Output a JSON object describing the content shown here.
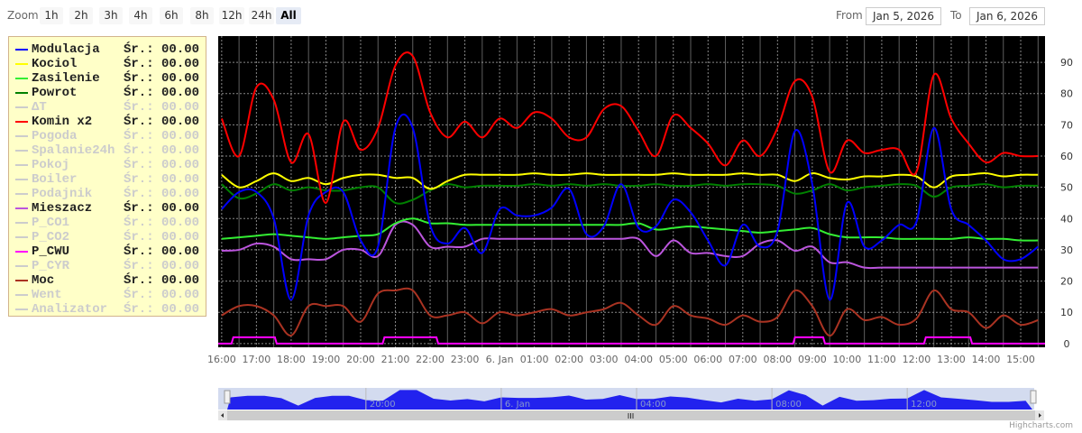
{
  "range_selector": {
    "zoom_label": "Zoom",
    "buttons": [
      "1h",
      "2h",
      "3h",
      "4h",
      "6h",
      "8h",
      "12h",
      "24h",
      "All"
    ],
    "selected": "All",
    "from_label": "From",
    "from_value": "Jan 5, 2026",
    "to_label": "To",
    "to_value": "Jan 6, 2026"
  },
  "legend": {
    "avg_label": "Śr.:",
    "items": [
      {
        "name": "Modulacja",
        "color": "#0000ff",
        "active": true,
        "avg": "00.00"
      },
      {
        "name": "Kociol",
        "color": "#ffff00",
        "active": true,
        "avg": "00.00"
      },
      {
        "name": "Zasilenie",
        "color": "#33ee33",
        "active": true,
        "avg": "00.00"
      },
      {
        "name": "Powrot",
        "color": "#008000",
        "active": true,
        "avg": "00.00"
      },
      {
        "name": "ΔT",
        "color": "#cccccc",
        "active": false,
        "avg": "00.00"
      },
      {
        "name": "Komin x2",
        "color": "#ff0000",
        "active": true,
        "avg": "00.00"
      },
      {
        "name": "Pogoda",
        "color": "#cccccc",
        "active": false,
        "avg": "00.00"
      },
      {
        "name": "Spalanie24h",
        "color": "#cccccc",
        "active": false,
        "avg": "00.00"
      },
      {
        "name": "Pokoj",
        "color": "#cccccc",
        "active": false,
        "avg": "00.00"
      },
      {
        "name": "Boiler",
        "color": "#cccccc",
        "active": false,
        "avg": "00.00"
      },
      {
        "name": "Podajnik",
        "color": "#cccccc",
        "active": false,
        "avg": "00.00"
      },
      {
        "name": "Mieszacz",
        "color": "#bb55dd",
        "active": true,
        "avg": "00.00"
      },
      {
        "name": "P_CO1",
        "color": "#cccccc",
        "active": false,
        "avg": "00.00"
      },
      {
        "name": "P_CO2",
        "color": "#cccccc",
        "active": false,
        "avg": "00.00"
      },
      {
        "name": "P_CWU",
        "color": "#ff00ff",
        "active": true,
        "avg": "00.00"
      },
      {
        "name": "P_CYR",
        "color": "#cccccc",
        "active": false,
        "avg": "00.00"
      },
      {
        "name": "Moc",
        "color": "#aa3322",
        "active": true,
        "avg": "00.00"
      },
      {
        "name": "Went",
        "color": "#cccccc",
        "active": false,
        "avg": "00.00"
      },
      {
        "name": "Analizator",
        "color": "#cccccc",
        "active": false,
        "avg": "00.00"
      }
    ]
  },
  "credits": "Highcharts.com",
  "chart_data": {
    "type": "line",
    "background": "#000000",
    "grid": true,
    "legend_placement": "left",
    "xrange": [
      "2026-01-05 15:54",
      "2026-01-06 15:42"
    ],
    "ylim": [
      -1.2,
      98.4
    ],
    "yticks": [
      0,
      10,
      20,
      30,
      40,
      50,
      60,
      70,
      80,
      90
    ],
    "xticks": [
      {
        "time": "2026-01-05 16:00",
        "label": "16:00"
      },
      {
        "time": "2026-01-05 17:00",
        "label": "17:00"
      },
      {
        "time": "2026-01-05 18:00",
        "label": "18:00"
      },
      {
        "time": "2026-01-05 19:00",
        "label": "19:00"
      },
      {
        "time": "2026-01-05 20:00",
        "label": "20:00"
      },
      {
        "time": "2026-01-05 21:00",
        "label": "21:00"
      },
      {
        "time": "2026-01-05 22:00",
        "label": "22:00"
      },
      {
        "time": "2026-01-05 23:00",
        "label": "23:00"
      },
      {
        "time": "2026-01-06 00:00",
        "label": "6. Jan"
      },
      {
        "time": "2026-01-06 01:00",
        "label": "01:00"
      },
      {
        "time": "2026-01-06 02:00",
        "label": "02:00"
      },
      {
        "time": "2026-01-06 03:00",
        "label": "03:00"
      },
      {
        "time": "2026-01-06 04:00",
        "label": "04:00"
      },
      {
        "time": "2026-01-06 05:00",
        "label": "05:00"
      },
      {
        "time": "2026-01-06 06:00",
        "label": "06:00"
      },
      {
        "time": "2026-01-06 07:00",
        "label": "07:00"
      },
      {
        "time": "2026-01-06 08:00",
        "label": "08:00"
      },
      {
        "time": "2026-01-06 09:00",
        "label": "09:00"
      },
      {
        "time": "2026-01-06 10:00",
        "label": "10:00"
      },
      {
        "time": "2026-01-06 11:00",
        "label": "11:00"
      },
      {
        "time": "2026-01-06 12:00",
        "label": "12:00"
      },
      {
        "time": "2026-01-06 13:00",
        "label": "13:00"
      },
      {
        "time": "2026-01-06 14:00",
        "label": "14:00"
      },
      {
        "time": "2026-01-06 15:00",
        "label": "15:00"
      }
    ],
    "x": [
      "2026-01-05 16:00",
      "2026-01-05 16:30",
      "2026-01-05 17:00",
      "2026-01-05 17:30",
      "2026-01-05 18:00",
      "2026-01-05 18:30",
      "2026-01-05 19:00",
      "2026-01-05 19:30",
      "2026-01-05 20:00",
      "2026-01-05 20:30",
      "2026-01-05 21:00",
      "2026-01-05 21:30",
      "2026-01-05 22:00",
      "2026-01-05 22:30",
      "2026-01-05 23:00",
      "2026-01-05 23:30",
      "2026-01-06 00:00",
      "2026-01-06 00:30",
      "2026-01-06 01:00",
      "2026-01-06 01:30",
      "2026-01-06 02:00",
      "2026-01-06 02:30",
      "2026-01-06 03:00",
      "2026-01-06 03:30",
      "2026-01-06 04:00",
      "2026-01-06 04:30",
      "2026-01-06 05:00",
      "2026-01-06 05:30",
      "2026-01-06 06:00",
      "2026-01-06 06:30",
      "2026-01-06 07:00",
      "2026-01-06 07:30",
      "2026-01-06 08:00",
      "2026-01-06 08:30",
      "2026-01-06 09:00",
      "2026-01-06 09:30",
      "2026-01-06 10:00",
      "2026-01-06 10:30",
      "2026-01-06 11:00",
      "2026-01-06 11:30",
      "2026-01-06 12:00",
      "2026-01-06 12:30",
      "2026-01-06 13:00",
      "2026-01-06 13:30",
      "2026-01-06 14:00",
      "2026-01-06 14:30",
      "2026-01-06 15:00",
      "2026-01-06 15:30"
    ],
    "series": [
      {
        "name": "Moc",
        "color": "#aa3322",
        "values": [
          9,
          12,
          12,
          9,
          2.6,
          12,
          12,
          12,
          7,
          16,
          17,
          17,
          9,
          9,
          10,
          6.5,
          10,
          9,
          10,
          11,
          9,
          10,
          11,
          13,
          9,
          6,
          12,
          9,
          8,
          6,
          9,
          7,
          8.5,
          17,
          12,
          2.5,
          11,
          7.5,
          8.5,
          6,
          8,
          17,
          11,
          10,
          5,
          9,
          6,
          7.5
        ]
      },
      {
        "name": "Mieszacz",
        "color": "#bb55dd",
        "values": [
          29.7,
          30,
          32,
          31,
          27,
          27,
          27,
          30,
          30,
          28,
          38,
          38,
          31,
          31,
          31,
          33.5,
          33.5,
          33.5,
          33.5,
          33.5,
          33.5,
          33.5,
          33.5,
          33.5,
          33.5,
          28,
          33,
          29,
          29,
          28,
          28,
          32,
          33,
          29.7,
          31,
          26,
          26,
          24.3,
          24.3,
          24.3,
          24.3,
          24.3,
          24.3,
          24.3,
          24.3,
          24.3,
          24.3,
          24.3
        ]
      },
      {
        "name": "Zasilenie",
        "color": "#33ee33",
        "values": [
          33.5,
          34,
          34.5,
          35,
          34.5,
          34,
          33.5,
          34,
          34.5,
          35,
          38.5,
          40,
          38.5,
          38.5,
          38,
          38,
          38,
          38,
          38,
          38,
          38,
          38,
          38,
          38,
          38.5,
          36.5,
          37,
          37.5,
          37,
          36.5,
          36,
          35.5,
          36,
          36.5,
          37,
          35,
          34,
          34,
          34,
          33.5,
          33.5,
          33.5,
          33.5,
          34,
          33.5,
          33.5,
          33,
          33
        ]
      },
      {
        "name": "Powrot",
        "color": "#008000",
        "values": [
          51,
          46.5,
          48,
          51,
          49,
          50,
          49,
          49,
          50,
          50,
          45,
          46,
          49,
          51,
          50,
          50.5,
          50.5,
          50.5,
          51,
          50.5,
          51,
          50.5,
          51,
          50.5,
          50.5,
          51,
          50.5,
          50.5,
          51,
          50.5,
          51,
          51,
          50.5,
          48,
          49,
          51,
          49,
          50,
          50.5,
          51,
          50.5,
          47,
          50,
          50.5,
          51,
          50,
          50.5,
          50.5
        ]
      },
      {
        "name": "Kociol",
        "color": "#ffff00",
        "values": [
          54,
          50,
          52,
          54.5,
          52,
          53,
          51,
          53,
          54,
          54,
          53,
          53,
          49.5,
          52,
          54,
          54,
          54,
          54,
          54.5,
          54,
          54,
          54.5,
          54,
          54,
          54,
          54,
          54.5,
          54,
          54,
          54,
          54.5,
          54,
          54,
          52,
          54.5,
          53,
          52.5,
          53.5,
          53.5,
          54,
          53.5,
          50,
          53.5,
          54,
          54.5,
          53.5,
          54,
          54
        ]
      },
      {
        "name": "Modulacja",
        "color": "#0000ff",
        "values": [
          43,
          48.5,
          48.5,
          40,
          14,
          41,
          48.5,
          48.5,
          33,
          31,
          69,
          69,
          38,
          32,
          37,
          29,
          43,
          41,
          41,
          43.5,
          49.5,
          35,
          37.5,
          51,
          37,
          37.5,
          46,
          42,
          33,
          25,
          38,
          31,
          36,
          68,
          51,
          14,
          45,
          31,
          33,
          38,
          39,
          69,
          43,
          38,
          33,
          27,
          27,
          31
        ]
      },
      {
        "name": "Komin x2",
        "color": "#ff0000",
        "values": [
          72,
          60,
          82,
          78,
          58,
          67,
          45,
          71,
          62,
          69,
          89,
          92,
          74,
          66,
          71,
          66,
          72,
          69,
          74,
          72,
          66,
          66,
          75,
          76,
          68,
          60,
          73,
          69,
          64,
          57,
          65,
          60,
          69,
          84,
          79,
          55,
          65,
          61,
          62,
          62,
          55,
          86,
          72,
          64,
          58,
          61,
          60,
          60
        ]
      }
    ],
    "step_series": {
      "name": "P_CWU",
      "color": "#ff00ff",
      "off_value": 0,
      "on_value": 2,
      "on_intervals": [
        [
          "2026-01-05 16:17",
          "2026-01-05 17:35"
        ],
        [
          "2026-01-05 20:38",
          "2026-01-05 22:14"
        ],
        [
          "2026-01-06 08:27",
          "2026-01-06 09:22"
        ],
        [
          "2026-01-06 12:13",
          "2026-01-06 13:36"
        ]
      ]
    },
    "navigator": {
      "series": "Modulacja",
      "fill": "#2222ee",
      "labels": [
        {
          "time": "2026-01-05 20:00",
          "label": "20:00"
        },
        {
          "time": "2026-01-06 00:00",
          "label": "6. Jan"
        },
        {
          "time": "2026-01-06 04:00",
          "label": "04:00"
        },
        {
          "time": "2026-01-06 08:00",
          "label": "08:00"
        },
        {
          "time": "2026-01-06 12:00",
          "label": "12:00"
        }
      ]
    }
  }
}
